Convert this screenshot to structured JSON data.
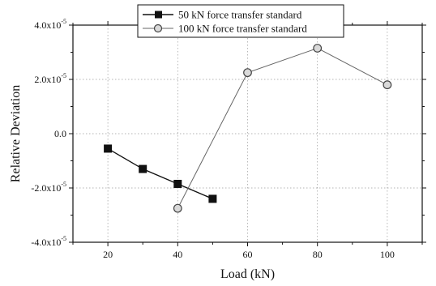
{
  "chart_data": {
    "type": "line",
    "xlabel": "Load (kN)",
    "ylabel": "Relative Deviation",
    "xlim": [
      10,
      110
    ],
    "ylim": [
      -4e-05,
      4e-05
    ],
    "x_ticks": [
      20,
      40,
      60,
      80,
      100
    ],
    "x_tick_labels": [
      "20",
      "40",
      "60",
      "80",
      "100"
    ],
    "y_ticks": [
      -4e-05,
      -2e-05,
      0.0,
      2e-05,
      4e-05
    ],
    "y_tick_labels": [
      {
        "mantissa": "-4.0x10",
        "exp": "-5"
      },
      {
        "mantissa": "-2.0x10",
        "exp": "-5"
      },
      {
        "mantissa": "0.0",
        "exp": ""
      },
      {
        "mantissa": "2.0x10",
        "exp": "-5"
      },
      {
        "mantissa": "4.0x10",
        "exp": "-5"
      }
    ],
    "grid": true,
    "legend_position": "top-center",
    "series": [
      {
        "name": "50 kN force transfer standard",
        "marker": "filled-square",
        "color": "#111111",
        "x": [
          20,
          30,
          40,
          50
        ],
        "y": [
          -5.5e-06,
          -1.3e-05,
          -1.85e-05,
          -2.4e-05
        ]
      },
      {
        "name": "100 kN force transfer standard",
        "marker": "open-circle",
        "color": "#666666",
        "x": [
          40,
          60,
          80,
          100
        ],
        "y": [
          -2.75e-05,
          2.25e-05,
          3.15e-05,
          1.8e-05
        ]
      }
    ]
  }
}
